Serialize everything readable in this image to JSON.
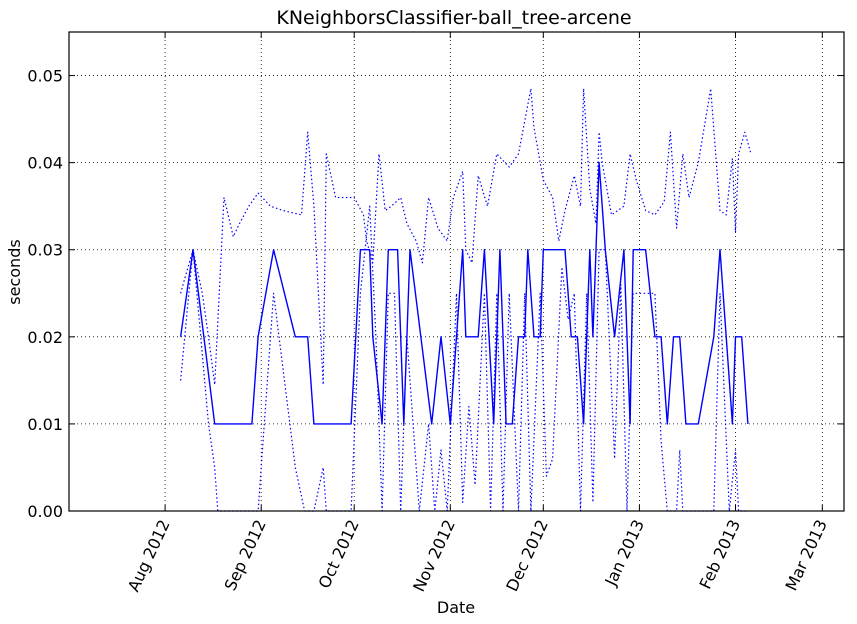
{
  "chart_data": {
    "type": "line",
    "title": "KNeighborsClassifier-ball_tree-arcene",
    "xlabel": "Date",
    "ylabel": "seconds",
    "xlim": [
      "2012-07-01",
      "2013-03-08"
    ],
    "ylim": [
      0,
      0.055
    ],
    "grid": true,
    "x_ticks": [
      {
        "date": "2012-08-01",
        "label": "Aug 2012"
      },
      {
        "date": "2012-09-01",
        "label": "Sep 2012"
      },
      {
        "date": "2012-10-01",
        "label": "Oct 2012"
      },
      {
        "date": "2012-11-01",
        "label": "Nov 2012"
      },
      {
        "date": "2012-12-01",
        "label": "Dec 2012"
      },
      {
        "date": "2013-01-01",
        "label": "Jan 2013"
      },
      {
        "date": "2013-02-01",
        "label": "Feb 2013"
      },
      {
        "date": "2013-03-01",
        "label": "Mar 2013"
      }
    ],
    "y_ticks": [
      {
        "value": 0.0,
        "label": "0.00"
      },
      {
        "value": 0.01,
        "label": "0.01"
      },
      {
        "value": 0.02,
        "label": "0.02"
      },
      {
        "value": 0.03,
        "label": "0.03"
      },
      {
        "value": 0.04,
        "label": "0.04"
      },
      {
        "value": 0.05,
        "label": "0.05"
      }
    ],
    "color": "#0000ff",
    "series": [
      {
        "style": "solid",
        "points": [
          [
            "2012-08-06",
            0.02
          ],
          [
            "2012-08-10",
            0.03
          ],
          [
            "2012-08-17",
            0.01
          ],
          [
            "2012-08-19",
            0.01
          ],
          [
            "2012-08-22",
            0.01
          ],
          [
            "2012-08-25",
            0.01
          ],
          [
            "2012-08-29",
            0.01
          ],
          [
            "2012-08-31",
            0.02
          ],
          [
            "2012-09-05",
            0.03
          ],
          [
            "2012-09-12",
            0.02
          ],
          [
            "2012-09-16",
            0.02
          ],
          [
            "2012-09-18",
            0.01
          ],
          [
            "2012-09-22",
            0.01
          ],
          [
            "2012-09-28",
            0.01
          ],
          [
            "2012-09-30",
            0.01
          ],
          [
            "2012-10-03",
            0.03
          ],
          [
            "2012-10-06",
            0.03
          ],
          [
            "2012-10-07",
            0.02
          ],
          [
            "2012-10-10",
            0.01
          ],
          [
            "2012-10-12",
            0.03
          ],
          [
            "2012-10-15",
            0.03
          ],
          [
            "2012-10-17",
            0.01
          ],
          [
            "2012-10-19",
            0.03
          ],
          [
            "2012-10-26",
            0.01
          ],
          [
            "2012-10-29",
            0.02
          ],
          [
            "2012-11-01",
            0.01
          ],
          [
            "2012-11-03",
            0.02
          ],
          [
            "2012-11-05",
            0.03
          ],
          [
            "2012-11-06",
            0.02
          ],
          [
            "2012-11-07",
            0.02
          ],
          [
            "2012-11-10",
            0.02
          ],
          [
            "2012-11-12",
            0.03
          ],
          [
            "2012-11-15",
            0.01
          ],
          [
            "2012-11-17",
            0.03
          ],
          [
            "2012-11-19",
            0.01
          ],
          [
            "2012-11-21",
            0.01
          ],
          [
            "2012-11-23",
            0.02
          ],
          [
            "2012-11-25",
            0.02
          ],
          [
            "2012-11-26",
            0.03
          ],
          [
            "2012-11-28",
            0.02
          ],
          [
            "2012-11-30",
            0.02
          ],
          [
            "2012-12-01",
            0.03
          ],
          [
            "2012-12-02",
            0.03
          ],
          [
            "2012-12-05",
            0.03
          ],
          [
            "2012-12-08",
            0.03
          ],
          [
            "2012-12-10",
            0.02
          ],
          [
            "2012-12-12",
            0.02
          ],
          [
            "2012-12-14",
            0.01
          ],
          [
            "2012-12-16",
            0.03
          ],
          [
            "2012-12-17",
            0.02
          ],
          [
            "2012-12-19",
            0.04
          ],
          [
            "2012-12-21",
            0.03
          ],
          [
            "2012-12-24",
            0.02
          ],
          [
            "2012-12-27",
            0.03
          ],
          [
            "2012-12-29",
            0.01
          ],
          [
            "2012-12-30",
            0.03
          ],
          [
            "2013-01-01",
            0.03
          ],
          [
            "2013-01-03",
            0.03
          ],
          [
            "2013-01-06",
            0.02
          ],
          [
            "2013-01-08",
            0.02
          ],
          [
            "2013-01-10",
            0.01
          ],
          [
            "2013-01-12",
            0.02
          ],
          [
            "2013-01-14",
            0.02
          ],
          [
            "2013-01-16",
            0.01
          ],
          [
            "2013-01-20",
            0.01
          ],
          [
            "2013-01-25",
            0.02
          ],
          [
            "2013-01-27",
            0.03
          ],
          [
            "2013-01-31",
            0.01
          ],
          [
            "2013-02-01",
            0.02
          ],
          [
            "2013-02-03",
            0.02
          ],
          [
            "2013-02-05",
            0.01
          ]
        ]
      },
      {
        "style": "dotted",
        "points": [
          [
            "2012-08-06",
            0.025
          ],
          [
            "2012-08-10",
            0.03
          ],
          [
            "2012-08-13",
            0.025
          ],
          [
            "2012-08-15",
            0.02
          ],
          [
            "2012-08-17",
            0.0145
          ],
          [
            "2012-08-20",
            0.036
          ],
          [
            "2012-08-23",
            0.0315
          ],
          [
            "2012-08-25",
            0.033
          ],
          [
            "2012-08-28",
            0.035
          ],
          [
            "2012-08-31",
            0.0365
          ],
          [
            "2012-09-04",
            0.035
          ],
          [
            "2012-09-08",
            0.0345
          ],
          [
            "2012-09-14",
            0.034
          ],
          [
            "2012-09-16",
            0.0435
          ],
          [
            "2012-09-18",
            0.035
          ],
          [
            "2012-09-21",
            0.0145
          ],
          [
            "2012-09-22",
            0.041
          ],
          [
            "2012-09-25",
            0.036
          ],
          [
            "2012-09-28",
            0.036
          ],
          [
            "2012-10-01",
            0.036
          ],
          [
            "2012-10-04",
            0.034
          ],
          [
            "2012-10-05",
            0.031
          ],
          [
            "2012-10-07",
            0.0285
          ],
          [
            "2012-10-09",
            0.041
          ],
          [
            "2012-10-11",
            0.0345
          ],
          [
            "2012-10-13",
            0.035
          ],
          [
            "2012-10-16",
            0.036
          ],
          [
            "2012-10-18",
            0.033
          ],
          [
            "2012-10-21",
            0.031
          ],
          [
            "2012-10-23",
            0.0285
          ],
          [
            "2012-10-25",
            0.036
          ],
          [
            "2012-10-28",
            0.0325
          ],
          [
            "2012-10-31",
            0.031
          ],
          [
            "2012-11-02",
            0.036
          ],
          [
            "2012-11-05",
            0.039
          ],
          [
            "2012-11-06",
            0.03
          ],
          [
            "2012-11-08",
            0.0285
          ],
          [
            "2012-11-10",
            0.0385
          ],
          [
            "2012-11-13",
            0.035
          ],
          [
            "2012-11-16",
            0.041
          ],
          [
            "2012-11-20",
            0.0395
          ],
          [
            "2012-11-23",
            0.041
          ],
          [
            "2012-11-27",
            0.0485
          ],
          [
            "2012-11-28",
            0.044
          ],
          [
            "2012-12-01",
            0.038
          ],
          [
            "2012-12-04",
            0.036
          ],
          [
            "2012-12-06",
            0.031
          ],
          [
            "2012-12-08",
            0.0345
          ],
          [
            "2012-12-11",
            0.0385
          ],
          [
            "2012-12-13",
            0.035
          ],
          [
            "2012-12-14",
            0.0485
          ],
          [
            "2012-12-16",
            0.037
          ],
          [
            "2012-12-18",
            0.033
          ],
          [
            "2012-12-19",
            0.0435
          ],
          [
            "2012-12-20",
            0.04
          ],
          [
            "2012-12-23",
            0.034
          ],
          [
            "2012-12-27",
            0.035
          ],
          [
            "2012-12-29",
            0.041
          ],
          [
            "2012-12-31",
            0.038
          ],
          [
            "2013-01-03",
            0.0345
          ],
          [
            "2013-01-06",
            0.034
          ],
          [
            "2013-01-09",
            0.0355
          ],
          [
            "2013-01-11",
            0.0435
          ],
          [
            "2013-01-13",
            0.0325
          ],
          [
            "2013-01-15",
            0.041
          ],
          [
            "2013-01-17",
            0.036
          ],
          [
            "2013-01-20",
            0.04
          ],
          [
            "2013-01-24",
            0.0485
          ],
          [
            "2013-01-27",
            0.0345
          ],
          [
            "2013-01-29",
            0.034
          ],
          [
            "2013-01-31",
            0.0405
          ],
          [
            "2013-02-01",
            0.032
          ],
          [
            "2013-02-02",
            0.041
          ],
          [
            "2013-02-04",
            0.0435
          ],
          [
            "2013-02-06",
            0.041
          ]
        ]
      },
      {
        "style": "dotted",
        "points": [
          [
            "2012-08-06",
            0.015
          ],
          [
            "2012-08-10",
            0.03
          ],
          [
            "2012-08-15",
            0.01
          ],
          [
            "2012-08-17",
            0.005
          ],
          [
            "2012-08-18",
            0.0
          ],
          [
            "2012-08-31",
            0.0
          ],
          [
            "2012-09-05",
            0.025
          ],
          [
            "2012-09-12",
            0.005
          ],
          [
            "2012-09-15",
            0.0
          ],
          [
            "2012-09-18",
            0.0
          ],
          [
            "2012-09-21",
            0.005
          ],
          [
            "2012-09-22",
            0.0
          ],
          [
            "2012-09-30",
            0.0
          ],
          [
            "2012-10-03",
            0.025
          ],
          [
            "2012-10-06",
            0.035
          ],
          [
            "2012-10-08",
            0.02
          ],
          [
            "2012-10-10",
            0.0
          ],
          [
            "2012-10-12",
            0.025
          ],
          [
            "2012-10-14",
            0.025
          ],
          [
            "2012-10-16",
            0.0
          ],
          [
            "2012-10-18",
            0.02
          ],
          [
            "2012-10-22",
            0.0
          ],
          [
            "2012-10-25",
            0.01
          ],
          [
            "2012-10-27",
            0.0
          ],
          [
            "2012-10-29",
            0.007
          ],
          [
            "2012-10-31",
            0.0
          ],
          [
            "2012-11-03",
            0.025
          ],
          [
            "2012-11-05",
            0.001
          ],
          [
            "2012-11-07",
            0.012
          ],
          [
            "2012-11-09",
            0.003
          ],
          [
            "2012-11-12",
            0.025
          ],
          [
            "2012-11-14",
            0.0
          ],
          [
            "2012-11-16",
            0.025
          ],
          [
            "2012-11-18",
            0.0
          ],
          [
            "2012-11-20",
            0.025
          ],
          [
            "2012-11-23",
            0.0
          ],
          [
            "2012-11-25",
            0.025
          ],
          [
            "2012-11-27",
            0.0
          ],
          [
            "2012-11-30",
            0.025
          ],
          [
            "2012-12-02",
            0.004
          ],
          [
            "2012-12-04",
            0.006
          ],
          [
            "2012-12-07",
            0.028
          ],
          [
            "2012-12-09",
            0.022
          ],
          [
            "2012-12-11",
            0.025
          ],
          [
            "2012-12-13",
            0.0
          ],
          [
            "2012-12-15",
            0.025
          ],
          [
            "2012-12-17",
            0.001
          ],
          [
            "2012-12-19",
            0.03
          ],
          [
            "2012-12-21",
            0.03
          ],
          [
            "2012-12-24",
            0.006
          ],
          [
            "2012-12-26",
            0.026
          ],
          [
            "2012-12-28",
            0.0
          ],
          [
            "2012-12-30",
            0.025
          ],
          [
            "2013-01-02",
            0.025
          ],
          [
            "2013-01-06",
            0.025
          ],
          [
            "2013-01-08",
            0.008
          ],
          [
            "2013-01-10",
            0.0
          ],
          [
            "2013-01-13",
            0.0
          ],
          [
            "2013-01-14",
            0.007
          ],
          [
            "2013-01-15",
            0.0
          ],
          [
            "2013-01-25",
            0.0
          ],
          [
            "2013-01-27",
            0.025
          ],
          [
            "2013-01-30",
            0.0
          ],
          [
            "2013-02-01",
            0.007
          ],
          [
            "2013-02-02",
            0.0
          ],
          [
            "2013-02-05",
            0.0
          ]
        ]
      }
    ]
  }
}
